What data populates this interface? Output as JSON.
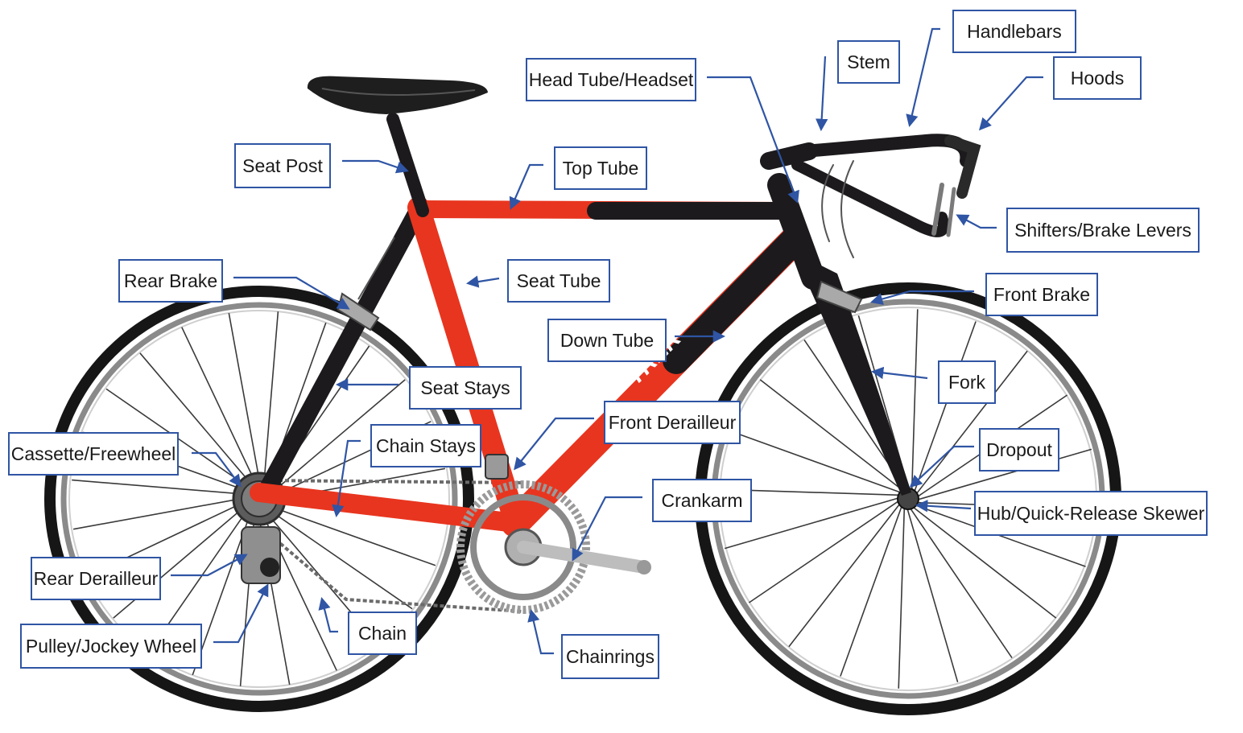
{
  "diagram": {
    "frame_color": "#e8351f",
    "carbon_color": "#1c1a1c",
    "arrow_color": "#2f55a4",
    "label_border_color": "#2f55a4",
    "labels": {
      "handlebars": "Handlebars",
      "stem": "Stem",
      "head_tube": "Head Tube/Headset",
      "hoods": "Hoods",
      "seat_post": "Seat Post",
      "top_tube": "Top Tube",
      "shifters": "Shifters/Brake Levers",
      "rear_brake": "Rear Brake",
      "seat_tube": "Seat Tube",
      "front_brake": "Front Brake",
      "down_tube": "Down Tube",
      "seat_stays": "Seat Stays",
      "fork": "Fork",
      "front_derailleur": "Front Derailleur",
      "cassette": "Cassette/Freewheel",
      "chain_stays": "Chain Stays",
      "dropout": "Dropout",
      "crankarm": "Crankarm",
      "hub": "Hub/Quick-Release Skewer",
      "rear_derailleur": "Rear Derailleur",
      "chain": "Chain",
      "pulley": "Pulley/Jockey Wheel",
      "chainrings": "Chainrings"
    }
  }
}
